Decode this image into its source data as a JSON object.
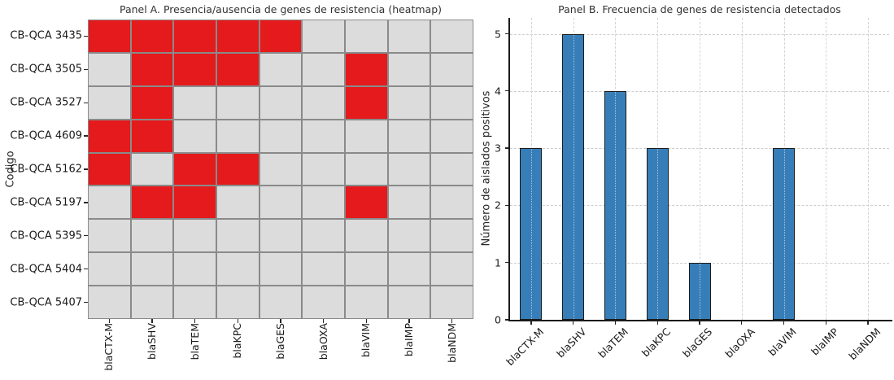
{
  "chart_data": [
    {
      "type": "heatmap",
      "title": "Panel A. Presencia/ausencia de genes de resistencia (heatmap)",
      "xlabel": "",
      "ylabel": "Codigo",
      "rows": [
        "CB-QCA 3435",
        "CB-QCA 3505",
        "CB-QCA 3527",
        "CB-QCA 4609",
        "CB-QCA 5162",
        "CB-QCA 5197",
        "CB-QCA 5395",
        "CB-QCA 5404",
        "CB-QCA 5407"
      ],
      "columns": [
        "blaCTX-M",
        "blaSHV",
        "blaTEM",
        "blaKPC",
        "blaGES",
        "blaOXA",
        "blaVIM",
        "blaIMP",
        "blaNDM"
      ],
      "matrix": [
        [
          1,
          1,
          1,
          1,
          1,
          0,
          0,
          0,
          0
        ],
        [
          0,
          1,
          1,
          1,
          0,
          0,
          1,
          0,
          0
        ],
        [
          0,
          1,
          0,
          0,
          0,
          0,
          1,
          0,
          0
        ],
        [
          1,
          1,
          0,
          0,
          0,
          0,
          0,
          0,
          0
        ],
        [
          1,
          0,
          1,
          1,
          0,
          0,
          0,
          0,
          0
        ],
        [
          0,
          1,
          1,
          0,
          0,
          0,
          1,
          0,
          0
        ],
        [
          0,
          0,
          0,
          0,
          0,
          0,
          0,
          0,
          0
        ],
        [
          0,
          0,
          0,
          0,
          0,
          0,
          0,
          0,
          0
        ],
        [
          0,
          0,
          0,
          0,
          0,
          0,
          0,
          0,
          0
        ]
      ],
      "colors": {
        "present": "#e41a1c",
        "absent": "#dcdcdc",
        "gridline": "#8a8a8a"
      }
    },
    {
      "type": "bar",
      "title": "Panel B. Frecuencia de genes de resistencia detectados",
      "xlabel": "",
      "ylabel": "Número de aislados positivos",
      "categories": [
        "blaCTX-M",
        "blaSHV",
        "blaTEM",
        "blaKPC",
        "blaGES",
        "blaOXA",
        "blaVIM",
        "blaIMP",
        "blaNDM"
      ],
      "values": [
        3,
        5,
        4,
        3,
        1,
        0,
        3,
        0,
        0
      ],
      "ylim": [
        0,
        5.28
      ],
      "yticks": [
        0,
        1,
        2,
        3,
        4,
        5
      ],
      "grid": "dotted",
      "legend": null,
      "bar_color": "#377eb8",
      "bar_edge_color": "#1a1a1a"
    }
  ]
}
